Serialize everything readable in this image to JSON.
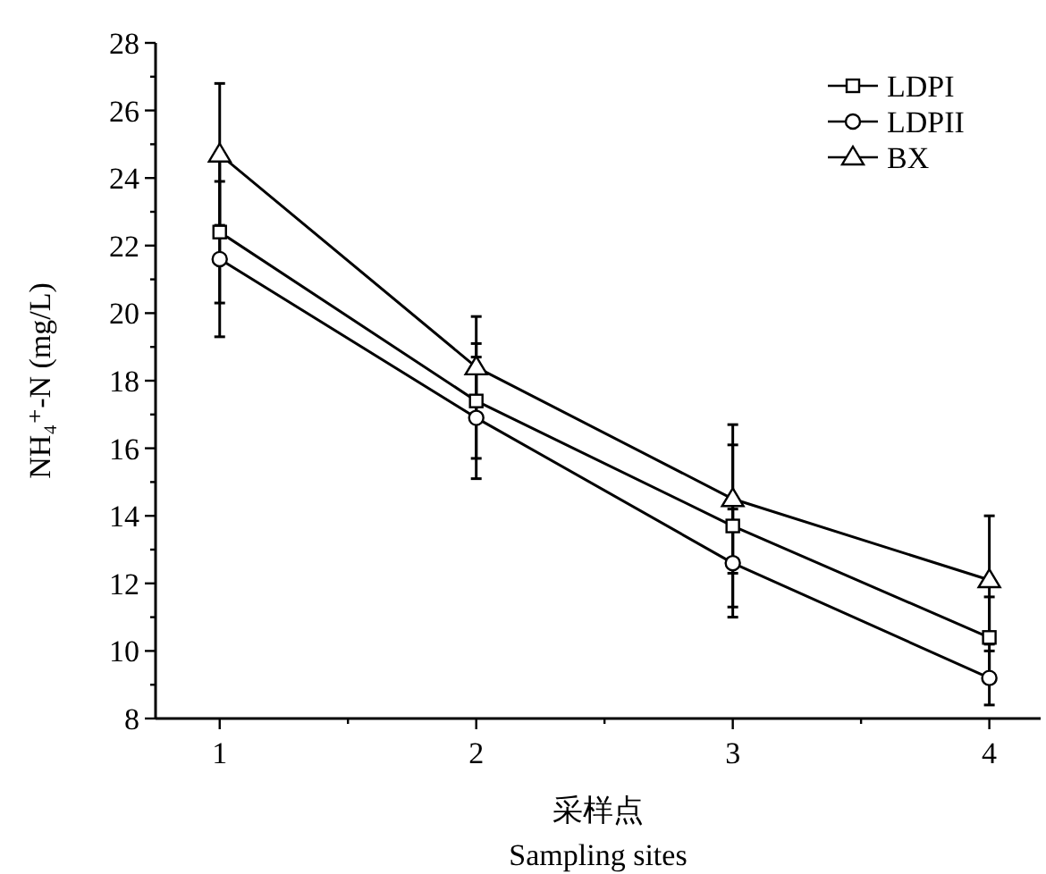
{
  "chart_data": {
    "type": "line",
    "xlabel": "采样点\nSampling sites",
    "ylabel": "NH₄⁺-N (mg/L)",
    "x": [
      1,
      2,
      3,
      4
    ],
    "xlim": [
      0.75,
      4.2
    ],
    "xticks": [
      1,
      {
        "value": 1.5,
        "label": null
      },
      2,
      {
        "value": 2.5,
        "label": null
      },
      3,
      {
        "value": 3.5,
        "label": null
      },
      4
    ],
    "ylim": [
      8,
      28
    ],
    "yticks": [
      8,
      {
        "value": 9,
        "label": null
      },
      10,
      {
        "value": 11,
        "label": null
      },
      12,
      {
        "value": 13,
        "label": null
      },
      14,
      {
        "value": 15,
        "label": null
      },
      16,
      {
        "value": 17,
        "label": null
      },
      18,
      {
        "value": 19,
        "label": null
      },
      20,
      {
        "value": 21,
        "label": null
      },
      22,
      {
        "value": 23,
        "label": null
      },
      24,
      {
        "value": 25,
        "label": null
      },
      26,
      {
        "value": 27,
        "label": null
      },
      28
    ],
    "grid": false,
    "legend": "top right",
    "line_style": "solid",
    "series": [
      {
        "name": "LDPI",
        "color": "#000000",
        "marker": "square",
        "values": [
          22.4,
          17.4,
          13.7,
          10.4
        ],
        "errors": [
          2.1,
          1.7,
          2.4,
          1.2
        ]
      },
      {
        "name": "LDPII",
        "color": "#000000",
        "marker": "circle",
        "values": [
          21.6,
          16.9,
          12.6,
          9.2
        ],
        "errors": [
          2.3,
          1.8,
          1.6,
          0.8
        ]
      },
      {
        "name": "BX",
        "color": "#000000",
        "marker": "triangle",
        "values": [
          24.7,
          18.4,
          14.5,
          12.1
        ],
        "errors": [
          2.1,
          1.5,
          2.2,
          1.9
        ]
      }
    ]
  }
}
